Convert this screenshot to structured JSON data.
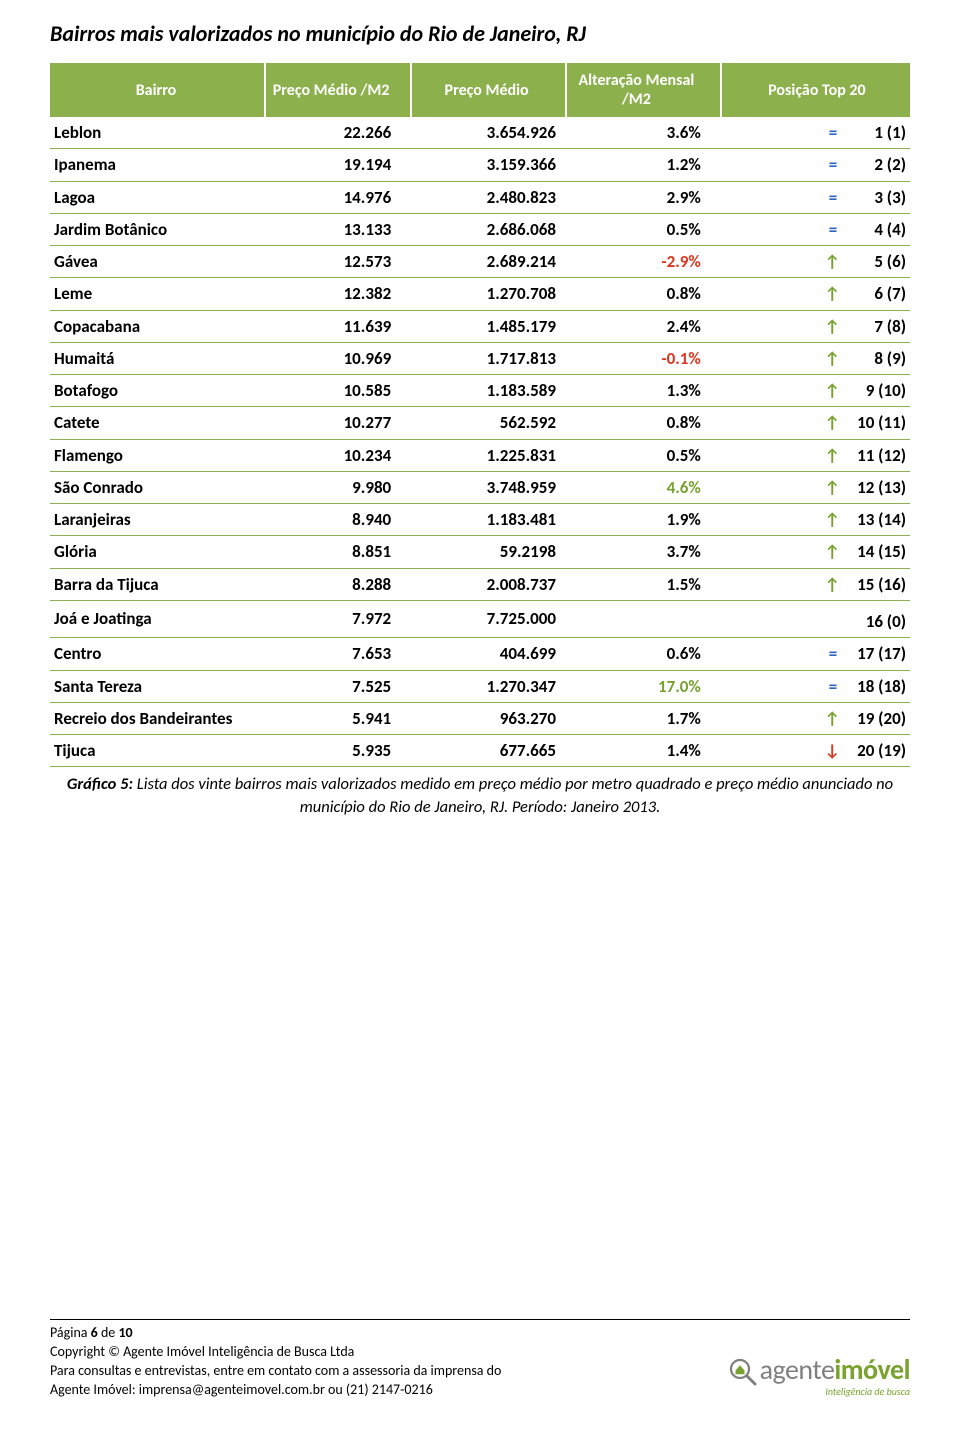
{
  "title": "Bairros mais valorizados no município do Rio de Janeiro, RJ",
  "colors": {
    "header_bg": "#8cb04c",
    "header_fg": "#ffffff",
    "row_border": "#8cb04c",
    "up": "#76a12e",
    "down": "#d9371f",
    "eq": "#2f66c4",
    "alt_default": "#000000"
  },
  "columns": [
    "Bairro",
    "Preço Médio /M2",
    "Preço Médio",
    "Alteração Mensal /M2",
    "Posição Top 20"
  ],
  "col_widths_pct": [
    25,
    17,
    18,
    18,
    22
  ],
  "rows": [
    {
      "bairro": "Leblon",
      "m2": "22.266",
      "medio": "3.654.926",
      "alt": "3.6%",
      "alt_color": "#000000",
      "sym": "=",
      "sym_color": "#2f66c4",
      "pos": "1 (1)"
    },
    {
      "bairro": "Ipanema",
      "m2": "19.194",
      "medio": "3.159.366",
      "alt": "1.2%",
      "alt_color": "#000000",
      "sym": "=",
      "sym_color": "#2f66c4",
      "pos": "2 (2)"
    },
    {
      "bairro": "Lagoa",
      "m2": "14.976",
      "medio": "2.480.823",
      "alt": "2.9%",
      "alt_color": "#000000",
      "sym": "=",
      "sym_color": "#2f66c4",
      "pos": "3 (3)"
    },
    {
      "bairro": "Jardim Botânico",
      "m2": "13.133",
      "medio": "2.686.068",
      "alt": "0.5%",
      "alt_color": "#000000",
      "sym": "=",
      "sym_color": "#2f66c4",
      "pos": "4 (4)"
    },
    {
      "bairro": "Gávea",
      "m2": "12.573",
      "medio": "2.689.214",
      "alt": "-2.9%",
      "alt_color": "#d9371f",
      "sym": "↑",
      "sym_color": "#76a12e",
      "pos": "5 (6)"
    },
    {
      "bairro": "Leme",
      "m2": "12.382",
      "medio": "1.270.708",
      "alt": "0.8%",
      "alt_color": "#000000",
      "sym": "↑",
      "sym_color": "#76a12e",
      "pos": "6 (7)"
    },
    {
      "bairro": "Copacabana",
      "m2": "11.639",
      "medio": "1.485.179",
      "alt": "2.4%",
      "alt_color": "#000000",
      "sym": "↑",
      "sym_color": "#76a12e",
      "pos": "7 (8)"
    },
    {
      "bairro": "Humaitá",
      "m2": "10.969",
      "medio": "1.717.813",
      "alt": "-0.1%",
      "alt_color": "#d9371f",
      "sym": "↑",
      "sym_color": "#76a12e",
      "pos": "8 (9)"
    },
    {
      "bairro": "Botafogo",
      "m2": "10.585",
      "medio": "1.183.589",
      "alt": "1.3%",
      "alt_color": "#000000",
      "sym": "↑",
      "sym_color": "#76a12e",
      "pos": "9 (10)"
    },
    {
      "bairro": "Catete",
      "m2": "10.277",
      "medio": "562.592",
      "alt": "0.8%",
      "alt_color": "#000000",
      "sym": "↑",
      "sym_color": "#76a12e",
      "pos": "10 (11)"
    },
    {
      "bairro": "Flamengo",
      "m2": "10.234",
      "medio": "1.225.831",
      "alt": "0.5%",
      "alt_color": "#000000",
      "sym": "↑",
      "sym_color": "#76a12e",
      "pos": "11 (12)"
    },
    {
      "bairro": "São Conrado",
      "m2": "9.980",
      "medio": "3.748.959",
      "alt": "4.6%",
      "alt_color": "#76a12e",
      "sym": "↑",
      "sym_color": "#76a12e",
      "pos": "12 (13)"
    },
    {
      "bairro": "Laranjeiras",
      "m2": "8.940",
      "medio": "1.183.481",
      "alt": "1.9%",
      "alt_color": "#000000",
      "sym": "↑",
      "sym_color": "#76a12e",
      "pos": "13 (14)"
    },
    {
      "bairro": "Glória",
      "m2": "8.851",
      "medio": "59.2198",
      "alt": "3.7%",
      "alt_color": "#000000",
      "sym": "↑",
      "sym_color": "#76a12e",
      "pos": "14 (15)"
    },
    {
      "bairro": "Barra da Tijuca",
      "m2": "8.288",
      "medio": "2.008.737",
      "alt": "1.5%",
      "alt_color": "#000000",
      "sym": "↑",
      "sym_color": "#76a12e",
      "pos": "15 (16)"
    },
    {
      "bairro": "Joá e Joatinga",
      "m2": "7.972",
      "medio": "7.725.000",
      "alt": "",
      "alt_color": "#000000",
      "sym": "",
      "sym_color": "#000000",
      "pos": "16 (0)"
    },
    {
      "bairro": "Centro",
      "m2": "7.653",
      "medio": "404.699",
      "alt": "0.6%",
      "alt_color": "#000000",
      "sym": "=",
      "sym_color": "#2f66c4",
      "pos": "17 (17)"
    },
    {
      "bairro": "Santa Tereza",
      "m2": "7.525",
      "medio": "1.270.347",
      "alt": "17.0%",
      "alt_color": "#76a12e",
      "sym": "=",
      "sym_color": "#2f66c4",
      "pos": "18 (18)"
    },
    {
      "bairro": "Recreio dos Bandeirantes",
      "m2": "5.941",
      "medio": "963.270",
      "alt": "1.7%",
      "alt_color": "#000000",
      "sym": "↑",
      "sym_color": "#76a12e",
      "pos": "19 (20)",
      "wrap": true
    },
    {
      "bairro": "Tijuca",
      "m2": "5.935",
      "medio": "677.665",
      "alt": "1.4%",
      "alt_color": "#000000",
      "sym": "↓",
      "sym_color": "#d9371f",
      "pos": "20 (19)"
    }
  ],
  "caption_bold": "Gráfico 5:",
  "caption_rest": " Lista dos vinte bairros mais valorizados medido em preço médio por metro quadrado e preço médio anunciado no município do Rio de Janeiro, RJ. Período: Janeiro 2013.",
  "footer": {
    "page_label": "Página ",
    "page_num": "6",
    "page_of": " de ",
    "page_total": "10",
    "line2": "Copyright © Agente Imóvel Inteligência de Busca Ltda",
    "line3": "Para consultas e entrevistas, entre em contato com a assessoria da imprensa do",
    "line4": "Agente Imóvel: imprensa@agenteimovel.com.br ou (21) 2147-0216",
    "logo_part1": "agente",
    "logo_part2": "imóvel",
    "logo_sub": "Inteligência de busca"
  }
}
